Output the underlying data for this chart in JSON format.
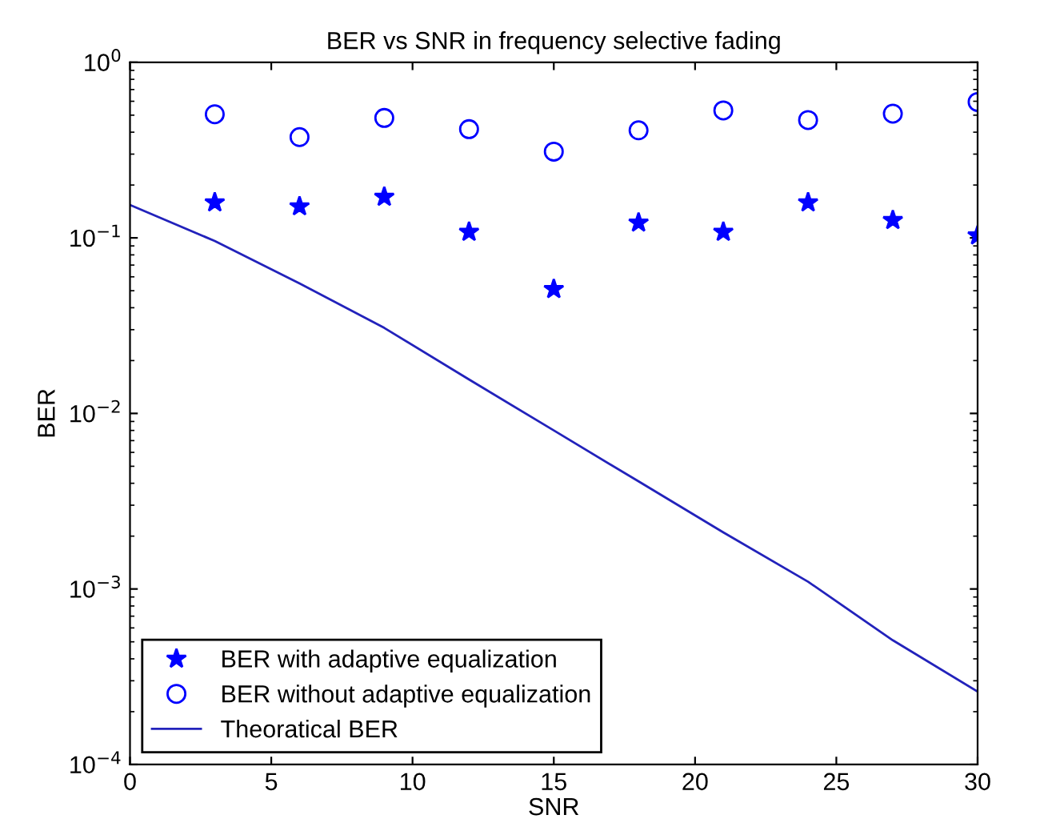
{
  "chart_data": {
    "type": "scatter",
    "title": "BER vs SNR in frequency selective fading",
    "xlabel": "SNR",
    "ylabel": "BER",
    "log": "y",
    "grid": false,
    "legend": "bottom left",
    "xlim": [
      0,
      30
    ],
    "xticks": [
      0,
      5,
      10,
      15,
      20,
      25,
      30
    ],
    "ylim": [
      0.0001,
      1
    ],
    "yticks": [
      {
        "value": 0.0001,
        "label": "10$^{−4}$"
      },
      {
        "value": 0.001,
        "label": "10$^{−3}$"
      },
      {
        "value": 0.01,
        "label": "10$^{−2}$"
      },
      {
        "value": 0.1,
        "label": "10$^{−1}$"
      },
      {
        "value": 1,
        "label": "10$^{0}$"
      }
    ],
    "series": [
      {
        "name": "BER with adaptive equalization",
        "marker": "star",
        "color": "#0000ff",
        "x": [
          3,
          6,
          9,
          12,
          15,
          18,
          21,
          24,
          27,
          30
        ],
        "values": [
          0.159,
          0.151,
          0.171,
          0.108,
          0.051,
          0.122,
          0.108,
          0.159,
          0.126,
          0.103
        ]
      },
      {
        "name": "BER without adaptive equalization",
        "marker": "circle",
        "color": "#0000ff",
        "x": [
          3,
          6,
          9,
          12,
          15,
          18,
          21,
          24,
          27,
          30
        ],
        "values": [
          0.506,
          0.375,
          0.482,
          0.416,
          0.31,
          0.41,
          0.532,
          0.469,
          0.51,
          0.594
        ]
      },
      {
        "name": "Theoratical BER",
        "type": "line",
        "marker": "none",
        "line_style": "solid",
        "color": "#2222bb",
        "x": [
          0,
          3,
          6,
          9,
          12,
          15,
          18,
          21,
          24,
          27,
          30
        ],
        "values": [
          0.154,
          0.096,
          0.055,
          0.0307,
          0.0156,
          0.008,
          0.0041,
          0.0021,
          0.0011,
          0.00051,
          0.00026
        ]
      }
    ]
  }
}
